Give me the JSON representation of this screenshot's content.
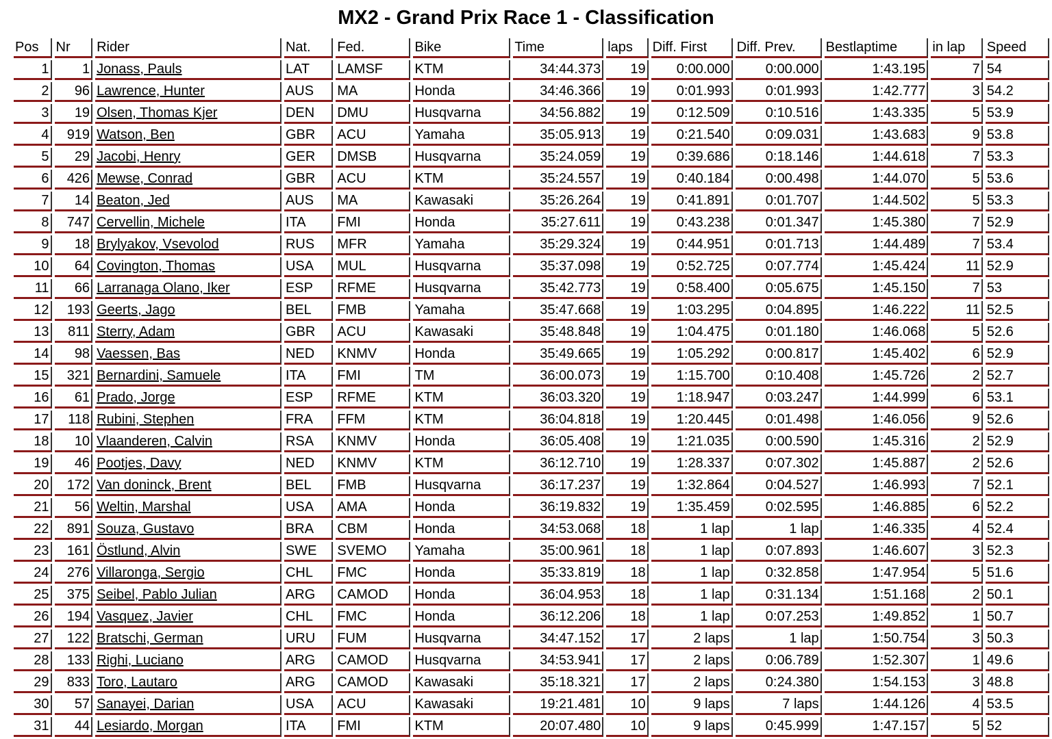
{
  "title": "MX2 - Grand Prix Race 1 - Classification",
  "columns": [
    "Pos",
    "Nr",
    "Rider",
    "Nat.",
    "Fed.",
    "Bike",
    "Time",
    "laps",
    "Diff. First",
    "Diff. Prev.",
    "Bestlaptime",
    "in lap",
    "Speed"
  ],
  "accent_color": "#8b1a1a",
  "rows": [
    [
      "1",
      "1",
      "Jonass, Pauls",
      "LAT",
      "LAMSF",
      "KTM",
      "34:44.373",
      "19",
      "0:00.000",
      "0:00.000",
      "1:43.195",
      "7",
      "54"
    ],
    [
      "2",
      "96",
      "Lawrence, Hunter",
      "AUS",
      "MA",
      "Honda",
      "34:46.366",
      "19",
      "0:01.993",
      "0:01.993",
      "1:42.777",
      "3",
      "54.2"
    ],
    [
      "3",
      "19",
      "Olsen, Thomas Kjer",
      "DEN",
      "DMU",
      "Husqvarna",
      "34:56.882",
      "19",
      "0:12.509",
      "0:10.516",
      "1:43.335",
      "5",
      "53.9"
    ],
    [
      "4",
      "919",
      "Watson, Ben",
      "GBR",
      "ACU",
      "Yamaha",
      "35:05.913",
      "19",
      "0:21.540",
      "0:09.031",
      "1:43.683",
      "9",
      "53.8"
    ],
    [
      "5",
      "29",
      "Jacobi, Henry",
      "GER",
      "DMSB",
      "Husqvarna",
      "35:24.059",
      "19",
      "0:39.686",
      "0:18.146",
      "1:44.618",
      "7",
      "53.3"
    ],
    [
      "6",
      "426",
      "Mewse, Conrad",
      "GBR",
      "ACU",
      "KTM",
      "35:24.557",
      "19",
      "0:40.184",
      "0:00.498",
      "1:44.070",
      "5",
      "53.6"
    ],
    [
      "7",
      "14",
      "Beaton, Jed",
      "AUS",
      "MA",
      "Kawasaki",
      "35:26.264",
      "19",
      "0:41.891",
      "0:01.707",
      "1:44.502",
      "5",
      "53.3"
    ],
    [
      "8",
      "747",
      "Cervellin, Michele",
      "ITA",
      "FMI",
      "Honda",
      "35:27.611",
      "19",
      "0:43.238",
      "0:01.347",
      "1:45.380",
      "7",
      "52.9"
    ],
    [
      "9",
      "18",
      "Brylyakov, Vsevolod",
      "RUS",
      "MFR",
      "Yamaha",
      "35:29.324",
      "19",
      "0:44.951",
      "0:01.713",
      "1:44.489",
      "7",
      "53.4"
    ],
    [
      "10",
      "64",
      "Covington, Thomas",
      "USA",
      "MUL",
      "Husqvarna",
      "35:37.098",
      "19",
      "0:52.725",
      "0:07.774",
      "1:45.424",
      "11",
      "52.9"
    ],
    [
      "11",
      "66",
      "Larranaga Olano, Iker",
      "ESP",
      "RFME",
      "Husqvarna",
      "35:42.773",
      "19",
      "0:58.400",
      "0:05.675",
      "1:45.150",
      "7",
      "53"
    ],
    [
      "12",
      "193",
      "Geerts, Jago",
      "BEL",
      "FMB",
      "Yamaha",
      "35:47.668",
      "19",
      "1:03.295",
      "0:04.895",
      "1:46.222",
      "11",
      "52.5"
    ],
    [
      "13",
      "811",
      "Sterry, Adam",
      "GBR",
      "ACU",
      "Kawasaki",
      "35:48.848",
      "19",
      "1:04.475",
      "0:01.180",
      "1:46.068",
      "5",
      "52.6"
    ],
    [
      "14",
      "98",
      "Vaessen, Bas",
      "NED",
      "KNMV",
      "Honda",
      "35:49.665",
      "19",
      "1:05.292",
      "0:00.817",
      "1:45.402",
      "6",
      "52.9"
    ],
    [
      "15",
      "321",
      "Bernardini, Samuele",
      "ITA",
      "FMI",
      "TM",
      "36:00.073",
      "19",
      "1:15.700",
      "0:10.408",
      "1:45.726",
      "2",
      "52.7"
    ],
    [
      "16",
      "61",
      "Prado, Jorge",
      "ESP",
      "RFME",
      "KTM",
      "36:03.320",
      "19",
      "1:18.947",
      "0:03.247",
      "1:44.999",
      "6",
      "53.1"
    ],
    [
      "17",
      "118",
      "Rubini, Stephen",
      "FRA",
      "FFM",
      "KTM",
      "36:04.818",
      "19",
      "1:20.445",
      "0:01.498",
      "1:46.056",
      "9",
      "52.6"
    ],
    [
      "18",
      "10",
      "Vlaanderen, Calvin",
      "RSA",
      "KNMV",
      "Honda",
      "36:05.408",
      "19",
      "1:21.035",
      "0:00.590",
      "1:45.316",
      "2",
      "52.9"
    ],
    [
      "19",
      "46",
      "Pootjes, Davy",
      "NED",
      "KNMV",
      "KTM",
      "36:12.710",
      "19",
      "1:28.337",
      "0:07.302",
      "1:45.887",
      "2",
      "52.6"
    ],
    [
      "20",
      "172",
      "Van doninck, Brent",
      "BEL",
      "FMB",
      "Husqvarna",
      "36:17.237",
      "19",
      "1:32.864",
      "0:04.527",
      "1:46.993",
      "7",
      "52.1"
    ],
    [
      "21",
      "56",
      "Weltin, Marshal",
      "USA",
      "AMA",
      "Honda",
      "36:19.832",
      "19",
      "1:35.459",
      "0:02.595",
      "1:46.885",
      "6",
      "52.2"
    ],
    [
      "22",
      "891",
      "Souza, Gustavo",
      "BRA",
      "CBM",
      "Honda",
      "34:53.068",
      "18",
      "1 lap",
      "1 lap",
      "1:46.335",
      "4",
      "52.4"
    ],
    [
      "23",
      "161",
      "Östlund, Alvin",
      "SWE",
      "SVEMO",
      "Yamaha",
      "35:00.961",
      "18",
      "1 lap",
      "0:07.893",
      "1:46.607",
      "3",
      "52.3"
    ],
    [
      "24",
      "276",
      "Villaronga, Sergio",
      "CHL",
      "FMC",
      "Honda",
      "35:33.819",
      "18",
      "1 lap",
      "0:32.858",
      "1:47.954",
      "5",
      "51.6"
    ],
    [
      "25",
      "375",
      "Seibel, Pablo Julian",
      "ARG",
      "CAMOD",
      "Honda",
      "36:04.953",
      "18",
      "1 lap",
      "0:31.134",
      "1:51.168",
      "2",
      "50.1"
    ],
    [
      "26",
      "194",
      "Vasquez, Javier",
      "CHL",
      "FMC",
      "Honda",
      "36:12.206",
      "18",
      "1 lap",
      "0:07.253",
      "1:49.852",
      "1",
      "50.7"
    ],
    [
      "27",
      "122",
      "Bratschi, German",
      "URU",
      "FUM",
      "Husqvarna",
      "34:47.152",
      "17",
      "2 laps",
      "1 lap",
      "1:50.754",
      "3",
      "50.3"
    ],
    [
      "28",
      "133",
      "Righi, Luciano",
      "ARG",
      "CAMOD",
      "Husqvarna",
      "34:53.941",
      "17",
      "2 laps",
      "0:06.789",
      "1:52.307",
      "1",
      "49.6"
    ],
    [
      "29",
      "833",
      "Toro, Lautaro",
      "ARG",
      "CAMOD",
      "Kawasaki",
      "35:18.321",
      "17",
      "2 laps",
      "0:24.380",
      "1:54.153",
      "3",
      "48.8"
    ],
    [
      "30",
      "57",
      "Sanayei, Darian",
      "USA",
      "ACU",
      "Kawasaki",
      "19:21.481",
      "10",
      "9 laps",
      "7 laps",
      "1:44.126",
      "4",
      "53.5"
    ],
    [
      "31",
      "44",
      "Lesiardo, Morgan",
      "ITA",
      "FMI",
      "KTM",
      "20:07.480",
      "10",
      "9 laps",
      "0:45.999",
      "1:47.157",
      "5",
      "52"
    ]
  ]
}
